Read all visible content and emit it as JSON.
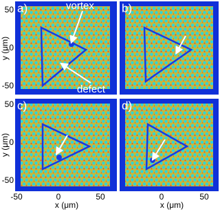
{
  "panels": [
    {
      "label": "a)"
    },
    {
      "label": "b)"
    },
    {
      "label": "c)"
    },
    {
      "label": "d)"
    }
  ],
  "annotations": {
    "vortex": "vortex",
    "defect": "defect"
  },
  "y_axis": {
    "label": "y (μm)",
    "ticks": [
      "50",
      "0",
      "-50"
    ]
  },
  "x_axis": {
    "label": "x (μm)",
    "ticks": [
      "-50",
      "0",
      "50"
    ]
  }
}
